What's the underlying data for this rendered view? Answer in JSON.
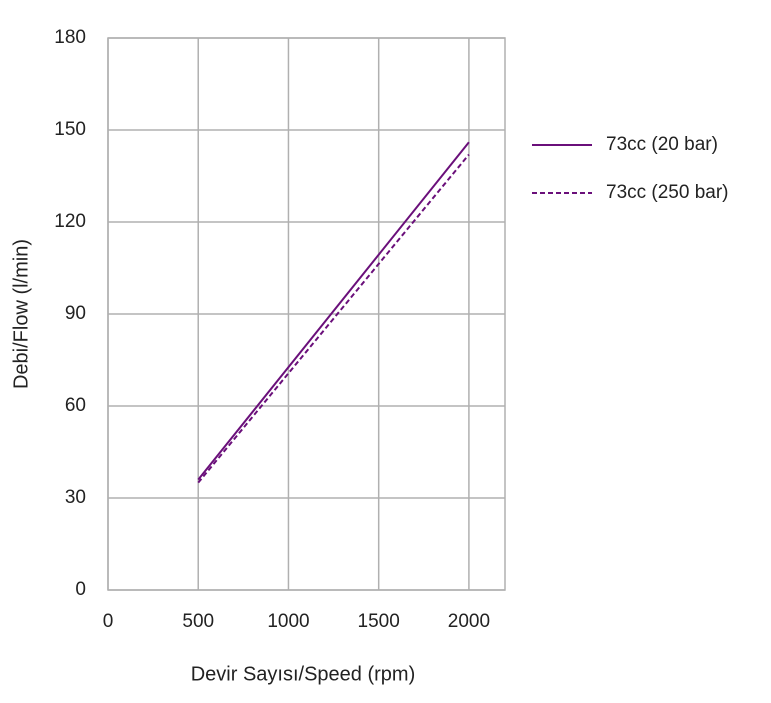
{
  "chart_data": {
    "type": "line",
    "x_label": "Devir Sayısı/Speed (rpm)",
    "y_label": "Debi/Flow (l/min)",
    "x": [
      500,
      2000
    ],
    "series": [
      {
        "name": "73cc (20 bar)",
        "color": "#6a0f7a",
        "dash": "solid",
        "values": [
          36,
          146
        ]
      },
      {
        "name": "73cc (250 bar)",
        "color": "#6a0f7a",
        "dash": "dashed",
        "values": [
          35,
          142
        ]
      }
    ],
    "xlim": [
      0,
      2200
    ],
    "xticks": [
      0,
      500,
      1000,
      1500,
      2000
    ],
    "ylim": [
      0,
      180
    ],
    "yticks": [
      0,
      30,
      60,
      90,
      120,
      150,
      180
    ],
    "grid": true,
    "legend": "right"
  }
}
